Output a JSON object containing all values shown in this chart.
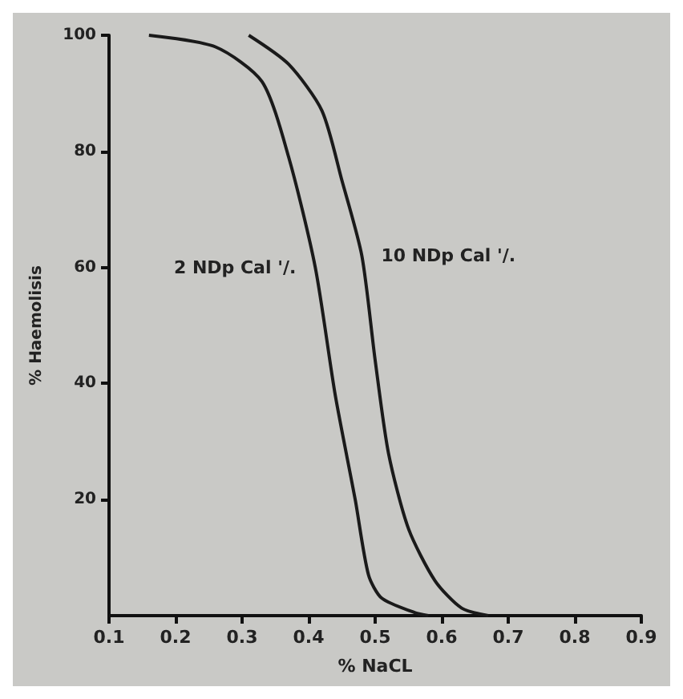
{
  "chart_data": {
    "type": "line",
    "xlabel": "% NaCL",
    "ylabel": "% Haemolisis",
    "xlim": [
      0.1,
      0.9
    ],
    "xticks": [
      0.1,
      0.2,
      0.3,
      0.4,
      0.5,
      0.6,
      0.7,
      0.8,
      0.9
    ],
    "ylim": [
      0,
      100
    ],
    "yticks": [
      20,
      40,
      60,
      80,
      100
    ],
    "grid": false,
    "marker": "none",
    "line_style": "solid",
    "series": [
      {
        "name": "2 NDp Cal '/.",
        "color": "#1a1a1a",
        "x": [
          0.16,
          0.26,
          0.33,
          0.37,
          0.41,
          0.44,
          0.47,
          0.49,
          0.51,
          0.56,
          0.58
        ],
        "values": [
          100,
          98,
          92,
          79,
          60,
          38,
          20,
          7,
          3,
          0.5,
          0
        ]
      },
      {
        "name": "10 NDp Cal '/.",
        "color": "#1a1a1a",
        "x": [
          0.31,
          0.37,
          0.42,
          0.45,
          0.48,
          0.5,
          0.52,
          0.55,
          0.59,
          0.63,
          0.67
        ],
        "values": [
          100,
          95,
          87,
          75,
          62,
          44,
          28,
          15,
          6,
          1.3,
          0
        ]
      }
    ]
  }
}
